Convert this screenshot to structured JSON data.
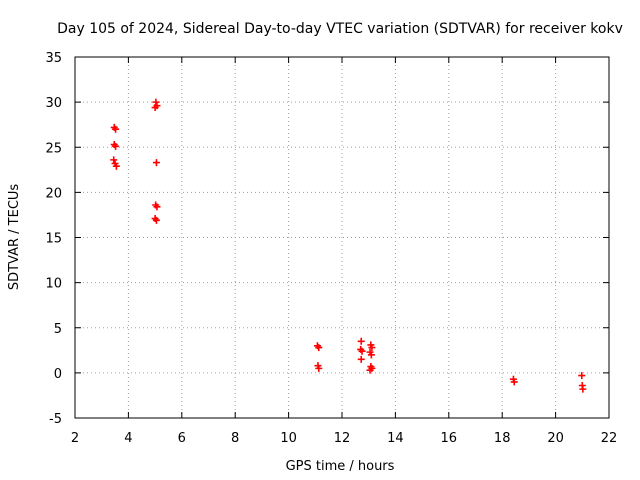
{
  "chart_data": {
    "type": "scatter",
    "title": "Day 105 of 2024, Sidereal Day-to-day VTEC variation (SDTVAR) for receiver kokv",
    "xlabel": "GPS time / hours",
    "ylabel": "SDTVAR / TECUs",
    "xlim": [
      2,
      22
    ],
    "ylim": [
      -5,
      35
    ],
    "xticks": [
      2,
      4,
      6,
      8,
      10,
      12,
      14,
      16,
      18,
      20,
      22
    ],
    "yticks": [
      -5,
      0,
      5,
      10,
      15,
      20,
      25,
      30,
      35
    ],
    "xtick_labels": [
      "2",
      "4",
      "6",
      "8",
      "10",
      "12",
      "14",
      "16",
      "18",
      "20",
      "22"
    ],
    "ytick_labels": [
      "-5",
      "0",
      "5",
      "10",
      "15",
      "20",
      "25",
      "30",
      "35"
    ],
    "grid": true,
    "marker": "+",
    "color": "#ff0000",
    "series": [
      {
        "name": "SDTVAR",
        "points": [
          [
            3.47,
            27.2
          ],
          [
            3.52,
            27.0
          ],
          [
            3.47,
            25.3
          ],
          [
            3.52,
            25.1
          ],
          [
            3.45,
            23.6
          ],
          [
            3.5,
            23.2
          ],
          [
            3.55,
            22.9
          ],
          [
            5.03,
            30.0
          ],
          [
            5.07,
            29.6
          ],
          [
            5.0,
            29.4
          ],
          [
            5.05,
            23.3
          ],
          [
            5.02,
            18.6
          ],
          [
            5.07,
            18.4
          ],
          [
            5.0,
            17.1
          ],
          [
            5.05,
            16.9
          ],
          [
            11.08,
            3.0
          ],
          [
            11.13,
            2.8
          ],
          [
            11.1,
            0.8
          ],
          [
            11.13,
            0.5
          ],
          [
            12.72,
            3.5
          ],
          [
            12.7,
            2.6
          ],
          [
            12.75,
            2.4
          ],
          [
            12.72,
            1.5
          ],
          [
            13.08,
            3.1
          ],
          [
            13.12,
            2.8
          ],
          [
            13.05,
            2.3
          ],
          [
            13.1,
            2.0
          ],
          [
            13.08,
            0.7
          ],
          [
            13.12,
            0.5
          ],
          [
            13.05,
            0.3
          ],
          [
            18.42,
            -0.7
          ],
          [
            18.45,
            -1.0
          ],
          [
            20.98,
            -0.3
          ],
          [
            21.0,
            -1.4
          ],
          [
            21.02,
            -1.8
          ]
        ]
      }
    ]
  }
}
